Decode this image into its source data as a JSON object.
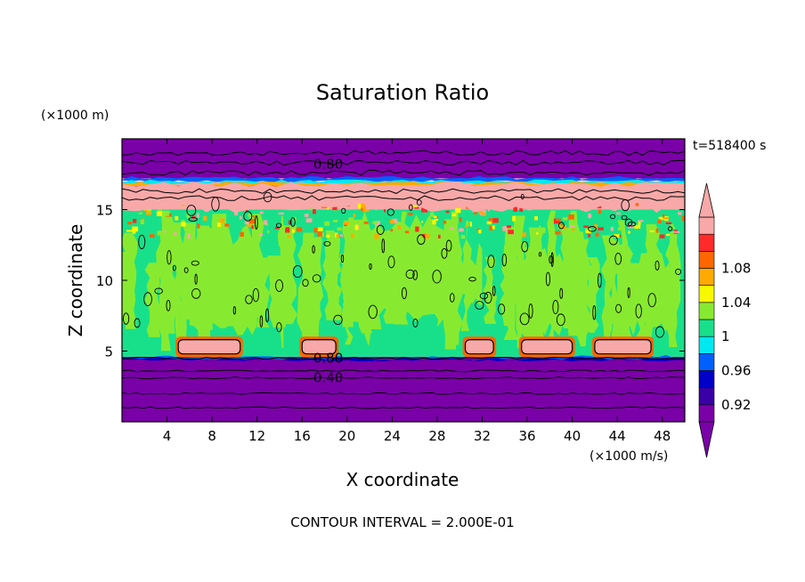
{
  "chart_data": {
    "type": "heatmap",
    "title": "Saturation Ratio",
    "xlabel": "X coordinate",
    "ylabel": "Z coordinate",
    "x_unit": "(×1000 m/s)",
    "y_unit": "(×1000 m)",
    "time_label": "t=518400 s",
    "footer": "CONTOUR INTERVAL = 2.000E-01",
    "xlim": [
      0,
      50
    ],
    "ylim": [
      0,
      20
    ],
    "x_ticks": [
      4,
      8,
      12,
      16,
      20,
      24,
      28,
      32,
      36,
      40,
      44,
      48
    ],
    "y_ticks": [
      5,
      10,
      15
    ],
    "contour_labels": [
      {
        "text": "0.80",
        "x": 17,
        "y": 18.2
      },
      {
        "text": "0.80",
        "x": 17,
        "y": 4.5
      },
      {
        "text": "0.40",
        "x": 17,
        "y": 3.1
      }
    ],
    "colorbar": {
      "labels": [
        "1.08",
        "1.04",
        "1",
        "0.96",
        "0.92"
      ],
      "colors": [
        "#7a00a8",
        "#3a00a8",
        "#0000c8",
        "#0060ff",
        "#00e8f0",
        "#18e08a",
        "#88ea30",
        "#f8f800",
        "#ffaa00",
        "#ff6600",
        "#ff2a2a",
        "#f8a8a8"
      ]
    },
    "layers": [
      {
        "name": "purple-bottom",
        "z": [
          0,
          4.6
        ],
        "color": "#7a00a8"
      },
      {
        "name": "cyan-green",
        "z": [
          4.6,
          15
        ],
        "color": "#18e08a"
      },
      {
        "name": "pink-top",
        "z": [
          15,
          17
        ],
        "color": "#f8a8a8"
      },
      {
        "name": "purple-top",
        "z": [
          17.2,
          20
        ],
        "color": "#7a00a8"
      }
    ]
  }
}
